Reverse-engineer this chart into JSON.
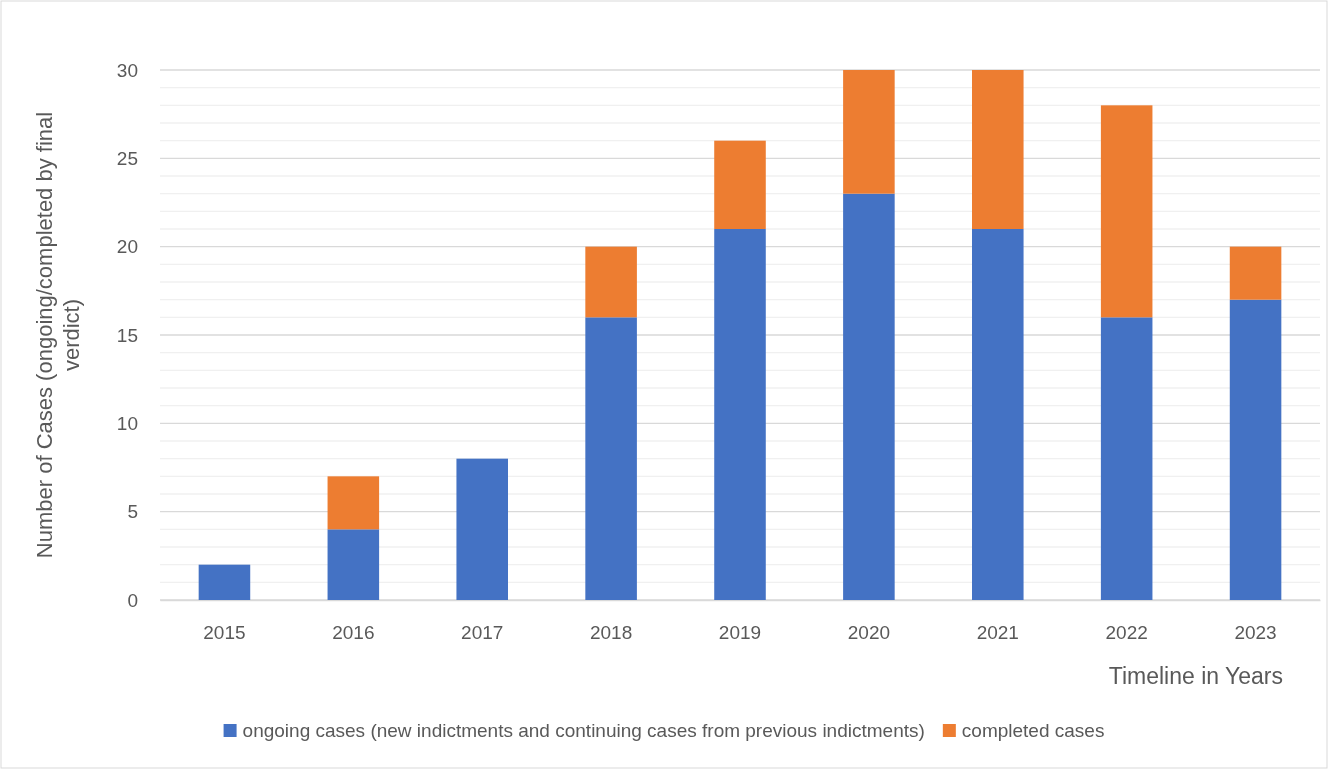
{
  "chart_data": {
    "type": "bar",
    "stacked": true,
    "xlabel": "Timeline in Years",
    "ylabel": "Number of Cases (ongoing/completed by final verdict)",
    "categories": [
      "2015",
      "2016",
      "2017",
      "2018",
      "2019",
      "2020",
      "2021",
      "2022",
      "2023"
    ],
    "series": [
      {
        "name": "ongoing cases (new indictments and continuing cases from previous indictments)",
        "color": "#4472c4",
        "values": [
          2,
          4,
          8,
          16,
          21,
          23,
          21,
          16,
          17
        ]
      },
      {
        "name": "completed cases",
        "color": "#ed7d31",
        "values": [
          0,
          3,
          0,
          4,
          5,
          7,
          9,
          12,
          3
        ]
      }
    ],
    "ylim": [
      0,
      30
    ],
    "yticks": [
      0,
      {
        "value": 1,
        "label": null
      },
      {
        "value": 2,
        "label": null
      },
      {
        "value": 3,
        "label": null
      },
      {
        "value": 4,
        "label": null
      },
      5,
      {
        "value": 6,
        "label": null
      },
      {
        "value": 7,
        "label": null
      },
      {
        "value": 8,
        "label": null
      },
      {
        "value": 9,
        "label": null
      },
      10,
      {
        "value": 11,
        "label": null
      },
      {
        "value": 12,
        "label": null
      },
      {
        "value": 13,
        "label": null
      },
      {
        "value": 14,
        "label": null
      },
      15,
      {
        "value": 16,
        "label": null
      },
      {
        "value": 17,
        "label": null
      },
      {
        "value": 18,
        "label": null
      },
      {
        "value": 19,
        "label": null
      },
      20,
      {
        "value": 21,
        "label": null
      },
      {
        "value": 22,
        "label": null
      },
      {
        "value": 23,
        "label": null
      },
      {
        "value": 24,
        "label": null
      },
      25,
      {
        "value": 26,
        "label": null
      },
      {
        "value": 27,
        "label": null
      },
      {
        "value": 28,
        "label": null
      },
      {
        "value": 29,
        "label": null
      },
      30
    ],
    "grid": true,
    "legend": "bottom"
  }
}
